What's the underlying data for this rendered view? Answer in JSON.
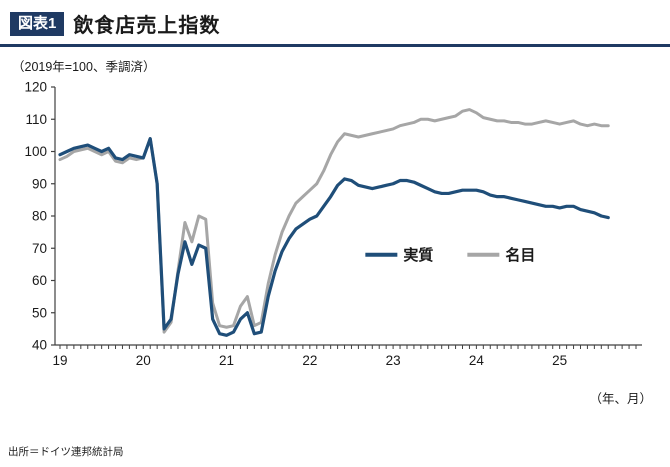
{
  "header": {
    "badge": "図表1",
    "title": "飲食店売上指数"
  },
  "subtitle": "（2019年=100、季調済）",
  "axis_note": "（年、月）",
  "source": "出所＝ドイツ連邦統計局",
  "colors": {
    "real": "#1f4e79",
    "nominal": "#a6a6a6",
    "accent": "#1f3a63",
    "axis": "#404040"
  },
  "chart_data": {
    "type": "line",
    "title": "飲食店売上指数",
    "subtitle": "2019年=100、季調済",
    "xlabel": "年、月",
    "ylabel": "",
    "ylim": [
      40,
      120
    ],
    "yticks": [
      40,
      50,
      60,
      70,
      80,
      90,
      100,
      110,
      120
    ],
    "grid": false,
    "legend_position": "center-right-inside",
    "x_axis_slots": 84,
    "xtick_years": [
      "19",
      "20",
      "21",
      "22",
      "23",
      "24",
      "25"
    ],
    "x": [
      "2019-01",
      "2019-02",
      "2019-03",
      "2019-04",
      "2019-05",
      "2019-06",
      "2019-07",
      "2019-08",
      "2019-09",
      "2019-10",
      "2019-11",
      "2019-12",
      "2020-01",
      "2020-02",
      "2020-03",
      "2020-04",
      "2020-05",
      "2020-06",
      "2020-07",
      "2020-08",
      "2020-09",
      "2020-10",
      "2020-11",
      "2020-12",
      "2021-01",
      "2021-02",
      "2021-03",
      "2021-04",
      "2021-05",
      "2021-06",
      "2021-07",
      "2021-08",
      "2021-09",
      "2021-10",
      "2021-11",
      "2021-12",
      "2022-01",
      "2022-02",
      "2022-03",
      "2022-04",
      "2022-05",
      "2022-06",
      "2022-07",
      "2022-08",
      "2022-09",
      "2022-10",
      "2022-11",
      "2022-12",
      "2023-01",
      "2023-02",
      "2023-03",
      "2023-04",
      "2023-05",
      "2023-06",
      "2023-07",
      "2023-08",
      "2023-09",
      "2023-10",
      "2023-11",
      "2023-12",
      "2024-01",
      "2024-02",
      "2024-03",
      "2024-04",
      "2024-05",
      "2024-06",
      "2024-07",
      "2024-08",
      "2024-09",
      "2024-10",
      "2024-11",
      "2024-12",
      "2025-01",
      "2025-02",
      "2025-03",
      "2025-04",
      "2025-05",
      "2025-06",
      "2025-07",
      "2025-08"
    ],
    "series": [
      {
        "name": "実質",
        "color_key": "real",
        "data_name": "real-series-line",
        "width": 3.2,
        "values": [
          99,
          100,
          101,
          101.5,
          102,
          101,
          100,
          101,
          98,
          97.5,
          99,
          98.5,
          98,
          104,
          90,
          45,
          48,
          62,
          72,
          65,
          71,
          70,
          48,
          43.5,
          43,
          44,
          48,
          50,
          43.5,
          44,
          55,
          63,
          69,
          73,
          76,
          77.5,
          79,
          80,
          83,
          86,
          89.5,
          91.5,
          91,
          89.5,
          89,
          88.5,
          89,
          89.5,
          90,
          91,
          91,
          90.5,
          89.5,
          88.5,
          87.5,
          87,
          87,
          87.5,
          88,
          88,
          88,
          87.5,
          86.5,
          86,
          86,
          85.5,
          85,
          84.5,
          84,
          83.5,
          83,
          83,
          82.5,
          83,
          83,
          82,
          81.5,
          81,
          80,
          79.5
        ]
      },
      {
        "name": "名目",
        "color_key": "nominal",
        "data_name": "nominal-series-line",
        "width": 3,
        "values": [
          97.5,
          98.5,
          100,
          100.5,
          101,
          100,
          99,
          100,
          97,
          96.5,
          98,
          97.5,
          98,
          104,
          90,
          44,
          47,
          63,
          78,
          72,
          80,
          79,
          53,
          46,
          45.5,
          46,
          52,
          55,
          46,
          47,
          59,
          68,
          75,
          80,
          84,
          86,
          88,
          90,
          94,
          99,
          103,
          105.5,
          105,
          104.5,
          105,
          105.5,
          106,
          106.5,
          107,
          108,
          108.5,
          109,
          110,
          110,
          109.5,
          110,
          110.5,
          111,
          112.5,
          113,
          112,
          110.5,
          110,
          109.5,
          109.5,
          109,
          109,
          108.5,
          108.5,
          109,
          109.5,
          109,
          108.5,
          109,
          109.5,
          108.5,
          108,
          108.5,
          108,
          108
        ]
      }
    ]
  }
}
